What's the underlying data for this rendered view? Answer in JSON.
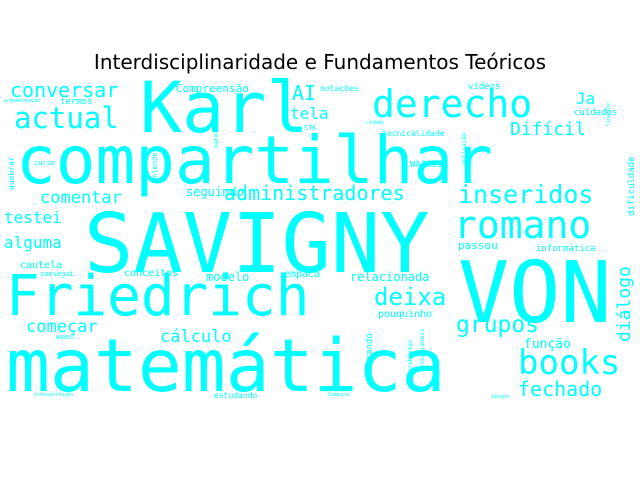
{
  "title": "Interdisciplinaridade e Fundamentos Teóricos",
  "word_color": "#00ffff",
  "words": [
    {
      "text": "SAVIGNY"
    },
    {
      "text": "compartilhar"
    },
    {
      "text": "matemática"
    },
    {
      "text": "Friedrich"
    },
    {
      "text": "Karl"
    },
    {
      "text": "VON"
    },
    {
      "text": "derecho"
    },
    {
      "text": "romano"
    },
    {
      "text": "books"
    },
    {
      "text": "actual"
    },
    {
      "text": "inseridos"
    },
    {
      "text": "deixa"
    },
    {
      "text": "grupos"
    },
    {
      "text": "conversar"
    },
    {
      "text": "administradores"
    },
    {
      "text": "fechado"
    },
    {
      "text": "AI"
    },
    {
      "text": "Difícil"
    },
    {
      "text": "diálogo"
    },
    {
      "text": "comentar"
    },
    {
      "text": "começar"
    },
    {
      "text": "cálculo"
    },
    {
      "text": "testei"
    },
    {
      "text": "alguma"
    },
    {
      "text": "tela"
    },
    {
      "text": "Ja"
    },
    {
      "text": "função"
    },
    {
      "text": "relacionada"
    },
    {
      "text": "modelo"
    },
    {
      "text": "seguindo"
    },
    {
      "text": "Compreensão"
    },
    {
      "text": "conceitos"
    },
    {
      "text": "empaca"
    },
    {
      "text": "passou"
    },
    {
      "text": "pouquinho"
    },
    {
      "text": "cautela"
    },
    {
      "text": "quebrando"
    },
    {
      "text": "informática"
    },
    {
      "text": "dificuldade"
    },
    {
      "text": "WA0003"
    },
    {
      "text": "termos"
    },
    {
      "text": "cuidados"
    },
    {
      "text": "tecnicalidade"
    },
    {
      "text": "notações"
    },
    {
      "text": "vídeos"
    },
    {
      "text": "estudando"
    },
    {
      "text": "quebrar"
    },
    {
      "text": "consegui"
    },
    {
      "text": "curso"
    },
    {
      "text": "matemáticos"
    },
    {
      "text": "entender"
    },
    {
      "text": "aplicação"
    },
    {
      "text": "problemas"
    },
    {
      "text": "sensacionais"
    },
    {
      "text": "STK"
    },
    {
      "text": "argumentação"
    },
    {
      "text": "interpretação"
    },
    {
      "text": "Compara"
    },
    {
      "text": "Google"
    },
    {
      "text": "WA0002"
    },
    {
      "text": "cidade"
    },
    {
      "text": "linkedin"
    }
  ]
}
